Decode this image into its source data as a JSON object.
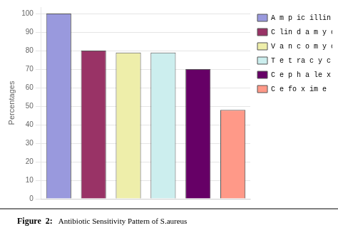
{
  "chart_data": {
    "type": "bar",
    "categories": [
      "A m p ic illin",
      "C lin d a m y c in",
      "V a n c o m y c in",
      "T e t ra c y c lin e",
      "C e p h a le x im e",
      "C e fo x im e"
    ],
    "values": [
      100,
      80,
      79,
      79,
      70,
      48
    ],
    "colors": [
      "#9999dd",
      "#993366",
      "#eeeeaa",
      "#cceeee",
      "#660066",
      "#ff9988"
    ],
    "y_label": "Percentages",
    "ylim": [
      0,
      103.5
    ],
    "yticks": [
      0,
      10,
      20,
      30,
      40,
      50,
      60,
      70,
      80,
      90,
      100
    ],
    "grid": true,
    "legend": "right",
    "tick_labels": "y",
    "annotations": [
      "Figure  2:",
      "Antibiotic Sensitivity Pattern of S.aureus"
    ]
  }
}
